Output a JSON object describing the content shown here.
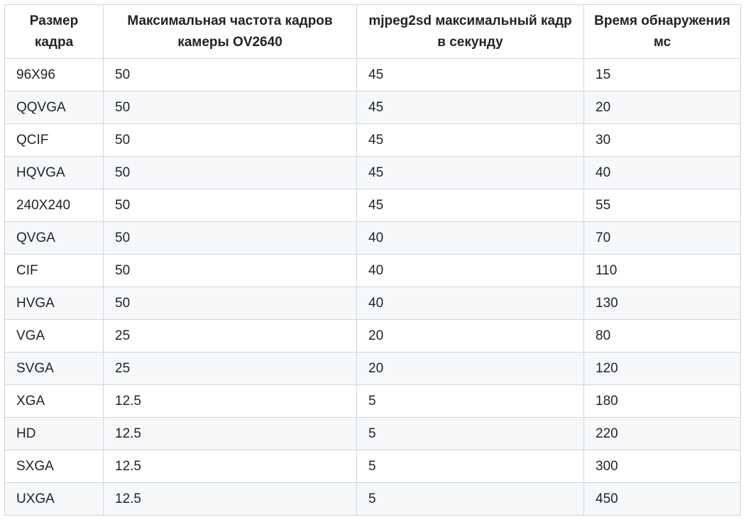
{
  "table": {
    "headers": [
      "Размер кадра",
      "Максимальная частота кадров камеры OV2640",
      "mjpeg2sd максимальный кадр в секунду",
      "Время обнаружения мс"
    ],
    "rows": [
      [
        "96X96",
        "50",
        "45",
        "15"
      ],
      [
        "QQVGA",
        "50",
        "45",
        "20"
      ],
      [
        "QCIF",
        "50",
        "45",
        "30"
      ],
      [
        "HQVGA",
        "50",
        "45",
        "40"
      ],
      [
        "240X240",
        "50",
        "45",
        "55"
      ],
      [
        "QVGA",
        "50",
        "40",
        "70"
      ],
      [
        "CIF",
        "50",
        "40",
        "110"
      ],
      [
        "HVGA",
        "50",
        "40",
        "130"
      ],
      [
        "VGA",
        "25",
        "20",
        "80"
      ],
      [
        "SVGA",
        "25",
        "20",
        "120"
      ],
      [
        "XGA",
        "12.5",
        "5",
        "180"
      ],
      [
        "HD",
        "12.5",
        "5",
        "220"
      ],
      [
        "SXGA",
        "12.5",
        "5",
        "300"
      ],
      [
        "UXGA",
        "12.5",
        "5",
        "450"
      ]
    ]
  }
}
